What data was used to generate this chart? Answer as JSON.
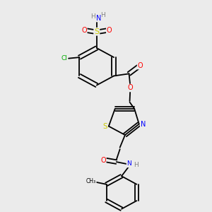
{
  "background_color": "#ebebeb",
  "fig_width": 3.0,
  "fig_height": 3.0,
  "dpi": 100,
  "atom_colors": {
    "C": "#000000",
    "N": "#0000ff",
    "O": "#ff0000",
    "S": "#cccc00",
    "Cl": "#00aa00",
    "H": "#808080"
  },
  "bond_color": "#000000",
  "bond_lw": 1.3
}
